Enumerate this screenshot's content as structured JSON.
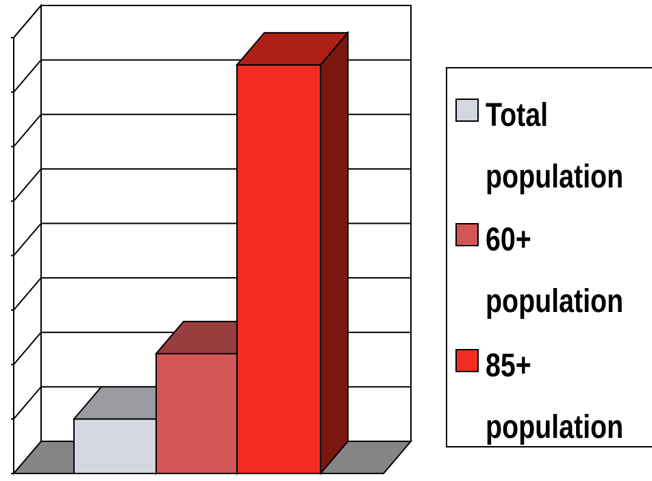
{
  "chart_data": {
    "type": "bar",
    "variant": "3d-column",
    "categories": [
      ""
    ],
    "series": [
      {
        "name": "Total population",
        "values": [
          1.0
        ],
        "color": "#d4d7df"
      },
      {
        "name": "60+ population",
        "values": [
          2.2
        ],
        "color": "#d35656"
      },
      {
        "name": "85+ population",
        "values": [
          7.5
        ],
        "color": "#f22d20"
      }
    ],
    "ylim": [
      0,
      8
    ],
    "grid": true,
    "legend": "right",
    "title": "",
    "xlabel": "",
    "ylabel": ""
  },
  "legend": {
    "items": [
      {
        "label": "Total population",
        "color": "#d4d7df"
      },
      {
        "label": "60+ population",
        "color": "#d35656"
      },
      {
        "label": "85+ population",
        "color": "#f22d20"
      }
    ]
  }
}
